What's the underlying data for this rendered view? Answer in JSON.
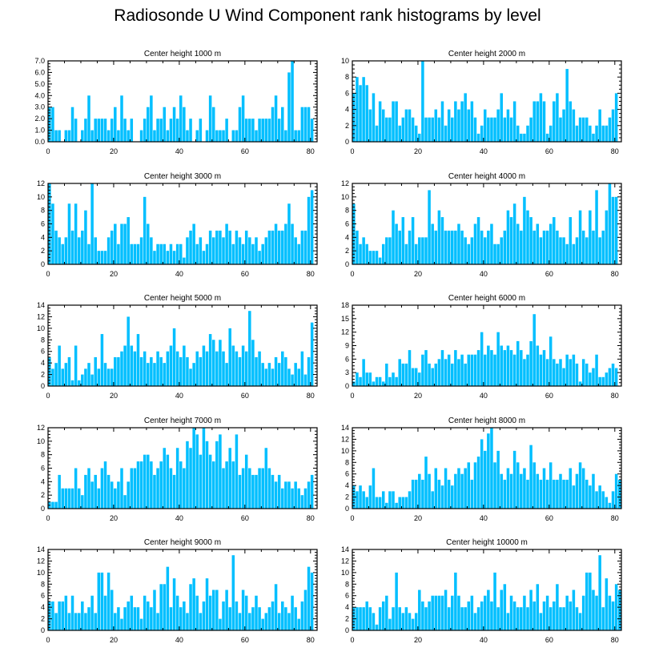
{
  "title": "Radiosonde U Wind Component rank histograms by level",
  "chart_data": [
    {
      "type": "bar",
      "title": "Center height 1000 m",
      "xlim": [
        0,
        82
      ],
      "ylim": [
        0,
        7
      ],
      "xticks": [
        0,
        20,
        40,
        60,
        80
      ],
      "yticks": [
        0,
        1,
        2,
        3,
        4,
        5,
        6,
        7
      ],
      "ytick_labels": [
        "0.0",
        "1.0",
        "2.0",
        "3.0",
        "4.0",
        "5.0",
        "6.0",
        "7.0"
      ],
      "bar_color": "#00bfff",
      "values": [
        3,
        3,
        1,
        1,
        0,
        1,
        1,
        3,
        2,
        0,
        1,
        2,
        4,
        1,
        2,
        2,
        2,
        2,
        1,
        2,
        3,
        1,
        4,
        2,
        1,
        2,
        0,
        0,
        1,
        2,
        3,
        4,
        1,
        2,
        2,
        3,
        1,
        2,
        3,
        2,
        4,
        3,
        1,
        2,
        0,
        1,
        2,
        0,
        1,
        4,
        3,
        1,
        1,
        1,
        2,
        0,
        1,
        1,
        3,
        4,
        2,
        2,
        2,
        1,
        2,
        2,
        2,
        2,
        3,
        4,
        2,
        3,
        1,
        6,
        7,
        1,
        1,
        3,
        3,
        3,
        2
      ]
    },
    {
      "type": "bar",
      "title": "Center height 2000 m",
      "xlim": [
        0,
        82
      ],
      "ylim": [
        0,
        10
      ],
      "xticks": [
        0,
        20,
        40,
        60,
        80
      ],
      "yticks": [
        0,
        2,
        4,
        6,
        8,
        10
      ],
      "ytick_labels": [
        "0",
        "2",
        "4",
        "6",
        "8",
        "10"
      ],
      "bar_color": "#00bfff",
      "values": [
        6,
        8,
        7,
        8,
        7,
        4,
        6,
        2,
        5,
        4,
        3,
        3,
        5,
        5,
        2,
        3,
        4,
        4,
        3,
        2,
        1,
        10,
        3,
        3,
        3,
        4,
        3,
        5,
        2,
        4,
        3,
        5,
        4,
        5,
        6,
        4,
        5,
        3,
        1,
        2,
        4,
        3,
        3,
        3,
        4,
        6,
        3,
        4,
        3,
        5,
        2,
        1,
        1,
        2,
        3,
        5,
        5,
        6,
        5,
        1,
        2,
        5,
        6,
        3,
        4,
        9,
        5,
        4,
        2,
        3,
        3,
        3,
        2,
        1,
        2,
        4,
        2,
        2,
        3,
        4,
        6
      ]
    },
    {
      "type": "bar",
      "title": "Center height 3000 m",
      "xlim": [
        0,
        82
      ],
      "ylim": [
        0,
        12
      ],
      "xticks": [
        0,
        20,
        40,
        60,
        80
      ],
      "yticks": [
        0,
        2,
        4,
        6,
        8,
        10,
        12
      ],
      "ytick_labels": [
        "0",
        "2",
        "4",
        "6",
        "8",
        "10",
        "12"
      ],
      "bar_color": "#00bfff",
      "values": [
        12,
        9,
        5,
        4,
        3,
        4,
        9,
        5,
        9,
        4,
        5,
        8,
        3,
        12,
        4,
        2,
        2,
        2,
        4,
        5,
        6,
        3,
        6,
        6,
        7,
        3,
        3,
        3,
        4,
        10,
        6,
        4,
        2,
        3,
        3,
        3,
        2,
        3,
        2,
        3,
        3,
        1,
        4,
        5,
        6,
        3,
        4,
        2,
        3,
        5,
        4,
        5,
        5,
        4,
        6,
        5,
        3,
        5,
        4,
        3,
        5,
        4,
        3,
        4,
        2,
        3,
        4,
        5,
        5,
        6,
        5,
        5,
        6,
        9,
        6,
        4,
        3,
        5,
        5,
        10,
        11
      ]
    },
    {
      "type": "bar",
      "title": "Center height 4000 m",
      "xlim": [
        0,
        82
      ],
      "ylim": [
        0,
        12
      ],
      "xticks": [
        0,
        20,
        40,
        60,
        80
      ],
      "yticks": [
        0,
        2,
        4,
        6,
        8,
        10,
        12
      ],
      "ytick_labels": [
        "0",
        "2",
        "4",
        "6",
        "8",
        "10",
        "12"
      ],
      "bar_color": "#00bfff",
      "values": [
        9,
        5,
        3,
        4,
        3,
        2,
        2,
        2,
        1,
        3,
        4,
        4,
        8,
        6,
        5,
        7,
        3,
        5,
        7,
        3,
        4,
        4,
        4,
        11,
        6,
        5,
        8,
        7,
        5,
        5,
        5,
        5,
        6,
        5,
        4,
        3,
        4,
        6,
        7,
        5,
        4,
        5,
        6,
        3,
        3,
        4,
        5,
        8,
        7,
        9,
        6,
        5,
        10,
        8,
        7,
        5,
        6,
        4,
        5,
        5,
        6,
        7,
        5,
        4,
        4,
        3,
        7,
        3,
        4,
        8,
        5,
        4,
        8,
        5,
        11,
        4,
        5,
        8,
        12,
        10,
        10
      ]
    },
    {
      "type": "bar",
      "title": "Center height 5000 m",
      "xlim": [
        0,
        82
      ],
      "ylim": [
        0,
        14
      ],
      "xticks": [
        0,
        20,
        40,
        60,
        80
      ],
      "yticks": [
        0,
        2,
        4,
        6,
        8,
        10,
        12,
        14
      ],
      "ytick_labels": [
        "0",
        "2",
        "4",
        "6",
        "8",
        "10",
        "12",
        "14"
      ],
      "bar_color": "#00bfff",
      "values": [
        5,
        3,
        4,
        7,
        3,
        4,
        5,
        1,
        7,
        1,
        2,
        3,
        4,
        2,
        5,
        3,
        9,
        4,
        3,
        3,
        5,
        5,
        6,
        7,
        12,
        7,
        6,
        9,
        5,
        6,
        4,
        5,
        4,
        6,
        5,
        4,
        6,
        7,
        10,
        6,
        5,
        7,
        5,
        3,
        4,
        6,
        5,
        7,
        6,
        9,
        8,
        6,
        8,
        6,
        4,
        10,
        7,
        6,
        5,
        7,
        6,
        13,
        8,
        5,
        6,
        4,
        3,
        4,
        3,
        5,
        4,
        6,
        5,
        3,
        2,
        4,
        3,
        6,
        2,
        5,
        11
      ]
    },
    {
      "type": "bar",
      "title": "Center height 6000 m",
      "xlim": [
        0,
        82
      ],
      "ylim": [
        0,
        18
      ],
      "xticks": [
        0,
        20,
        40,
        60,
        80
      ],
      "yticks": [
        0,
        3,
        6,
        9,
        12,
        15,
        18
      ],
      "ytick_labels": [
        "0",
        "3",
        "6",
        "9",
        "12",
        "15",
        "18"
      ],
      "bar_color": "#00bfff",
      "values": [
        1,
        3,
        2,
        6,
        3,
        3,
        1,
        2,
        2,
        1,
        5,
        2,
        3,
        2,
        6,
        5,
        5,
        8,
        4,
        4,
        3,
        7,
        8,
        5,
        4,
        5,
        6,
        8,
        6,
        7,
        5,
        8,
        6,
        7,
        5,
        7,
        7,
        7,
        8,
        12,
        7,
        9,
        8,
        7,
        12,
        9,
        8,
        9,
        8,
        7,
        10,
        8,
        6,
        7,
        10,
        16,
        9,
        7,
        8,
        6,
        11,
        6,
        5,
        6,
        4,
        7,
        6,
        7,
        5,
        1,
        6,
        5,
        3,
        4,
        7,
        2,
        2,
        3,
        4,
        5,
        4
      ]
    },
    {
      "type": "bar",
      "title": "Center height 7000 m",
      "xlim": [
        0,
        82
      ],
      "ylim": [
        0,
        12
      ],
      "xticks": [
        0,
        20,
        40,
        60,
        80
      ],
      "yticks": [
        0,
        2,
        4,
        6,
        8,
        10,
        12
      ],
      "ytick_labels": [
        "0",
        "2",
        "4",
        "6",
        "8",
        "10",
        "12"
      ],
      "bar_color": "#00bfff",
      "values": [
        1,
        1,
        1,
        5,
        3,
        3,
        3,
        3,
        6,
        3,
        2,
        5,
        6,
        4,
        5,
        3,
        6,
        7,
        5,
        4,
        3,
        4,
        6,
        2,
        4,
        6,
        6,
        7,
        7,
        8,
        8,
        7,
        5,
        6,
        7,
        9,
        8,
        6,
        5,
        9,
        7,
        6,
        10,
        9,
        12,
        11,
        8,
        12,
        10,
        8,
        7,
        10,
        11,
        6,
        7,
        9,
        7,
        11,
        5,
        6,
        8,
        6,
        5,
        5,
        6,
        6,
        9,
        6,
        5,
        4,
        5,
        3,
        4,
        4,
        3,
        4,
        3,
        2,
        3,
        4,
        5
      ]
    },
    {
      "type": "bar",
      "title": "Center height 8000 m",
      "xlim": [
        0,
        82
      ],
      "ylim": [
        0,
        14
      ],
      "xticks": [
        0,
        20,
        40,
        60,
        80
      ],
      "yticks": [
        0,
        2,
        4,
        6,
        8,
        10,
        12,
        14
      ],
      "ytick_labels": [
        "0",
        "2",
        "4",
        "6",
        "8",
        "10",
        "12",
        "14"
      ],
      "bar_color": "#00bfff",
      "values": [
        4,
        3,
        4,
        3,
        2,
        4,
        7,
        2,
        2,
        3,
        1,
        3,
        3,
        1,
        2,
        2,
        2,
        3,
        5,
        5,
        6,
        5,
        9,
        6,
        3,
        7,
        5,
        4,
        7,
        5,
        4,
        6,
        7,
        6,
        7,
        8,
        5,
        8,
        9,
        12,
        10,
        13,
        14,
        8,
        10,
        6,
        5,
        7,
        6,
        10,
        8,
        6,
        7,
        5,
        11,
        8,
        6,
        5,
        7,
        5,
        8,
        5,
        5,
        6,
        5,
        5,
        7,
        4,
        6,
        8,
        7,
        5,
        4,
        6,
        3,
        4,
        3,
        2,
        1,
        3,
        6,
        5
      ]
    },
    {
      "type": "bar",
      "title": "Center height 9000 m",
      "xlim": [
        0,
        82
      ],
      "ylim": [
        0,
        14
      ],
      "xticks": [
        0,
        20,
        40,
        60,
        80
      ],
      "yticks": [
        0,
        2,
        4,
        6,
        8,
        10,
        12,
        14
      ],
      "ytick_labels": [
        "0",
        "2",
        "4",
        "6",
        "8",
        "10",
        "12",
        "14"
      ],
      "bar_color": "#00bfff",
      "values": [
        5,
        5,
        3,
        5,
        5,
        6,
        3,
        6,
        3,
        3,
        5,
        3,
        4,
        6,
        3,
        10,
        10,
        6,
        10,
        7,
        3,
        4,
        2,
        4,
        5,
        6,
        4,
        4,
        2,
        6,
        5,
        4,
        7,
        3,
        8,
        8,
        11,
        4,
        9,
        6,
        4,
        5,
        3,
        8,
        9,
        6,
        3,
        5,
        9,
        6,
        7,
        7,
        2,
        5,
        7,
        4,
        13,
        5,
        3,
        7,
        6,
        3,
        4,
        6,
        4,
        2,
        3,
        4,
        5,
        8,
        3,
        5,
        4,
        3,
        6,
        4,
        2,
        5,
        7,
        11,
        10
      ]
    },
    {
      "type": "bar",
      "title": "Center height 10000 m",
      "xlim": [
        0,
        82
      ],
      "ylim": [
        0,
        14
      ],
      "xticks": [
        0,
        20,
        40,
        60,
        80
      ],
      "yticks": [
        0,
        2,
        4,
        6,
        8,
        10,
        12,
        14
      ],
      "ytick_labels": [
        "0",
        "2",
        "4",
        "6",
        "8",
        "10",
        "12",
        "14"
      ],
      "bar_color": "#00bfff",
      "values": [
        4,
        4,
        4,
        4,
        5,
        4,
        3,
        1,
        4,
        5,
        6,
        2,
        4,
        10,
        4,
        3,
        4,
        3,
        2,
        3,
        7,
        5,
        4,
        5,
        6,
        6,
        6,
        6,
        7,
        4,
        6,
        10,
        6,
        4,
        4,
        5,
        6,
        3,
        4,
        5,
        6,
        7,
        5,
        10,
        4,
        7,
        8,
        3,
        6,
        5,
        4,
        4,
        6,
        4,
        7,
        5,
        8,
        3,
        5,
        6,
        4,
        5,
        8,
        4,
        4,
        6,
        5,
        7,
        4,
        3,
        6,
        10,
        10,
        7,
        6,
        13,
        4,
        9,
        6,
        5,
        8,
        7
      ]
    }
  ]
}
